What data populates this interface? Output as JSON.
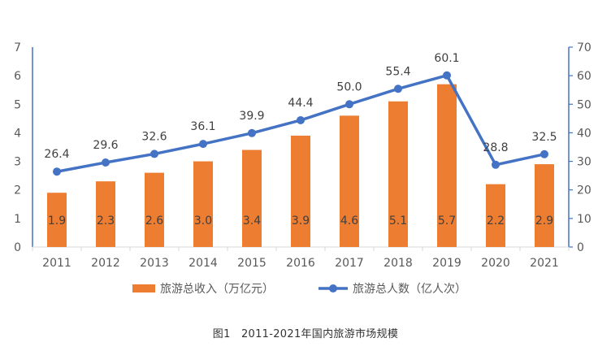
{
  "chart_data": {
    "type": "bar",
    "categories": [
      "2011",
      "2012",
      "2013",
      "2014",
      "2015",
      "2016",
      "2017",
      "2018",
      "2019",
      "2020",
      "2021"
    ],
    "series": [
      {
        "name": "旅游总收入（万亿元）",
        "type": "bar",
        "axis": "left",
        "color": "#ED7D31",
        "values": [
          1.9,
          2.3,
          2.6,
          3.0,
          3.4,
          3.9,
          4.6,
          5.1,
          5.7,
          2.2,
          2.9
        ]
      },
      {
        "name": "旅游总人数（亿人次）",
        "type": "line",
        "axis": "right",
        "color": "#4472C4",
        "values": [
          26.4,
          29.6,
          32.6,
          36.1,
          39.9,
          44.4,
          50.0,
          55.4,
          60.1,
          28.8,
          32.5
        ]
      }
    ],
    "y_left": {
      "min": 0,
      "max": 7,
      "ticks": [
        0,
        1,
        2,
        3,
        4,
        5,
        6,
        7
      ],
      "axis_color": "#4472C4"
    },
    "y_right": {
      "min": 0,
      "max": 70,
      "ticks": [
        0,
        10,
        20,
        30,
        40,
        50,
        60,
        70
      ],
      "axis_color": "#4472C4"
    },
    "grid": false,
    "legend_position": "bottom",
    "data_labels": true
  },
  "caption": "图1　2011-2021年国内旅游市场规模"
}
